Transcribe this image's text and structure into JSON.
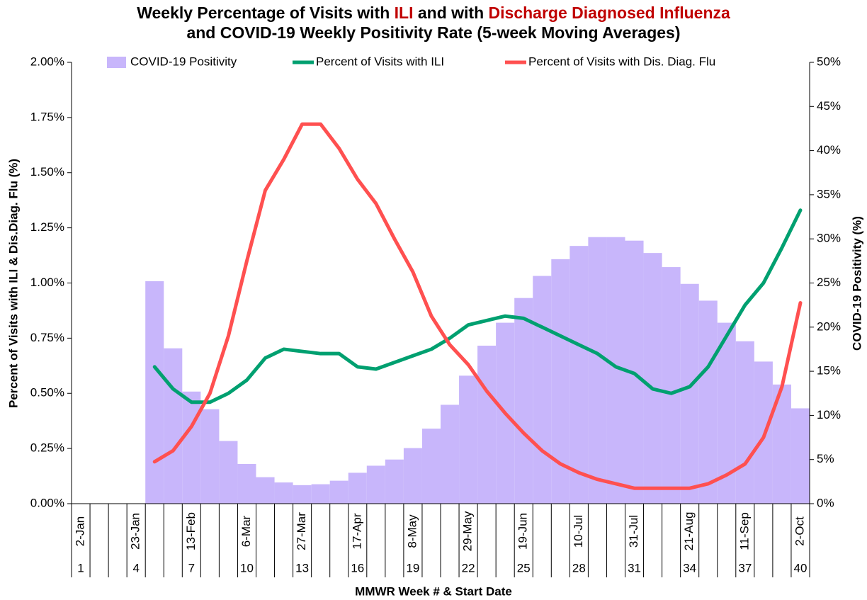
{
  "chart_data": {
    "type": "combo",
    "title": [
      [
        {
          "text": "Weekly Percentage of Visits with ",
          "color": "#000000"
        },
        {
          "text": "ILI",
          "color": "#c00000"
        },
        {
          "text": " and with ",
          "color": "#000000"
        },
        {
          "text": "Discharge Diagnosed Influenza",
          "color": "#c00000"
        }
      ],
      [
        {
          "text": "and COVID-19 Weekly Positivity Rate (5-week Moving Averages)",
          "color": "#000000"
        }
      ]
    ],
    "x_label": "MMWR Week # & Start Date",
    "y_label": "Percent of Visits with ILI & Dis.Diag. Flu (%)",
    "y2_label": "COVID-19 Positivity (%)",
    "categories": [
      "1",
      null,
      null,
      "4",
      null,
      null,
      "7",
      null,
      null,
      "10",
      null,
      null,
      "13",
      null,
      null,
      "16",
      null,
      null,
      "19",
      null,
      null,
      "22",
      null,
      null,
      "25",
      null,
      null,
      "28",
      null,
      null,
      "31",
      null,
      null,
      "34",
      null,
      null,
      "37",
      null,
      null,
      "40"
    ],
    "category_dates": [
      "2-Jan",
      null,
      null,
      "23-Jan",
      null,
      null,
      "13-Feb",
      null,
      null,
      "6-Mar",
      null,
      null,
      "27-Mar",
      null,
      null,
      "17-Apr",
      null,
      null,
      "8-May",
      null,
      null,
      "29-May",
      null,
      null,
      "19-Jun",
      null,
      null,
      "10-Jul",
      null,
      null,
      "31-Jul",
      null,
      null,
      "21-Aug",
      null,
      null,
      "11-Sep",
      null,
      null,
      "2-Oct"
    ],
    "series": [
      {
        "name": "COVID-19 Positivity",
        "type": "bar",
        "axis": "y2",
        "color": "#c8b6fb",
        "values": [
          null,
          null,
          null,
          null,
          25.2,
          17.6,
          12.7,
          10.7,
          7.1,
          4.5,
          3.0,
          2.4,
          2.1,
          2.2,
          2.6,
          3.5,
          4.3,
          5.0,
          6.3,
          8.5,
          11.2,
          14.5,
          17.9,
          20.5,
          23.3,
          25.8,
          27.7,
          29.2,
          30.2,
          30.2,
          29.8,
          28.4,
          26.8,
          24.9,
          23.0,
          20.5,
          18.4,
          16.1,
          13.5,
          10.8
        ]
      },
      {
        "name": "Percent of Visits with ILI",
        "type": "line",
        "axis": "y",
        "color": "#00a070",
        "values": [
          null,
          null,
          null,
          null,
          0.62,
          0.52,
          0.46,
          0.46,
          0.5,
          0.56,
          0.66,
          0.7,
          0.69,
          0.68,
          0.68,
          0.62,
          0.61,
          0.64,
          0.67,
          0.7,
          0.75,
          0.81,
          0.83,
          0.85,
          0.84,
          0.8,
          0.76,
          0.72,
          0.68,
          0.62,
          0.59,
          0.52,
          0.5,
          0.53,
          0.62,
          0.76,
          0.9,
          1.0,
          1.16,
          1.33
        ]
      },
      {
        "name": "Percent of Visits with Dis. Diag. Flu",
        "type": "line",
        "axis": "y",
        "color": "#ff5050",
        "values": [
          null,
          null,
          null,
          null,
          0.19,
          0.24,
          0.35,
          0.5,
          0.76,
          1.1,
          1.42,
          1.56,
          1.72,
          1.72,
          1.61,
          1.47,
          1.36,
          1.2,
          1.05,
          0.85,
          0.72,
          0.63,
          0.51,
          0.41,
          0.32,
          0.24,
          0.18,
          0.14,
          0.11,
          0.09,
          0.07,
          0.07,
          0.07,
          0.07,
          0.09,
          0.13,
          0.18,
          0.3,
          0.53,
          0.91
        ]
      }
    ],
    "ylim": [
      0,
      2
    ],
    "yticks": [
      {
        "value": 0,
        "label": "0.00%"
      },
      {
        "value": 0.25,
        "label": "0.25%"
      },
      {
        "value": 0.5,
        "label": "0.50%"
      },
      {
        "value": 0.75,
        "label": "0.75%"
      },
      {
        "value": 1,
        "label": "1.00%"
      },
      {
        "value": 1.25,
        "label": "1.25%"
      },
      {
        "value": 1.5,
        "label": "1.50%"
      },
      {
        "value": 1.75,
        "label": "1.75%"
      },
      {
        "value": 2,
        "label": "2.00%"
      }
    ],
    "y2lim": [
      0,
      50
    ],
    "y2ticks": [
      {
        "value": 0,
        "label": "0%"
      },
      {
        "value": 5,
        "label": "5%"
      },
      {
        "value": 10,
        "label": "10%"
      },
      {
        "value": 15,
        "label": "15%"
      },
      {
        "value": 20,
        "label": "20%"
      },
      {
        "value": 25,
        "label": "25%"
      },
      {
        "value": 30,
        "label": "30%"
      },
      {
        "value": 35,
        "label": "35%"
      },
      {
        "value": 40,
        "label": "40%"
      },
      {
        "value": 45,
        "label": "45%"
      },
      {
        "value": 50,
        "label": "50%"
      }
    ],
    "legend": "top",
    "grid": false
  }
}
